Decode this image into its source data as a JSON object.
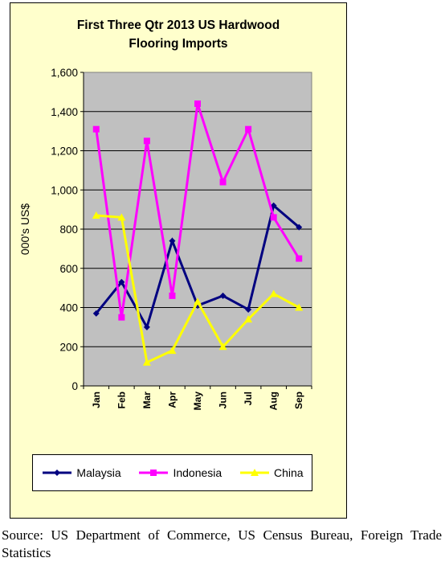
{
  "chart_data": {
    "type": "line",
    "title": "First Three Qtr 2013 US Hardwood\nFlooring  Imports",
    "ylabel": "000's US$",
    "xlabel": "",
    "categories": [
      "Jan",
      "Feb",
      "Mar",
      "Apr",
      "May",
      "Jun",
      "Jul",
      "Aug",
      "Sep"
    ],
    "ylim": [
      0,
      1600
    ],
    "yticks": [
      "0",
      "200",
      "400",
      "600",
      "800",
      "1,000",
      "1,200",
      "1,400",
      "1,600"
    ],
    "grid": true,
    "legend_position": "bottom",
    "plot_background": "#c0c0c0",
    "series": [
      {
        "name": "Malaysia",
        "color": "#000080",
        "marker": "diamond",
        "values": [
          370,
          530,
          300,
          740,
          410,
          460,
          390,
          920,
          810
        ]
      },
      {
        "name": "Indonesia",
        "color": "#ff00ff",
        "marker": "square",
        "values": [
          1310,
          350,
          1250,
          460,
          1440,
          1040,
          1310,
          860,
          650
        ]
      },
      {
        "name": "China",
        "color": "#ffff00",
        "marker": "triangle",
        "values": [
          870,
          860,
          120,
          180,
          430,
          200,
          340,
          470,
          400
        ]
      }
    ]
  },
  "source_note": "Source: US Department of Commerce, US Census Bureau, Foreign Trade Statistics"
}
